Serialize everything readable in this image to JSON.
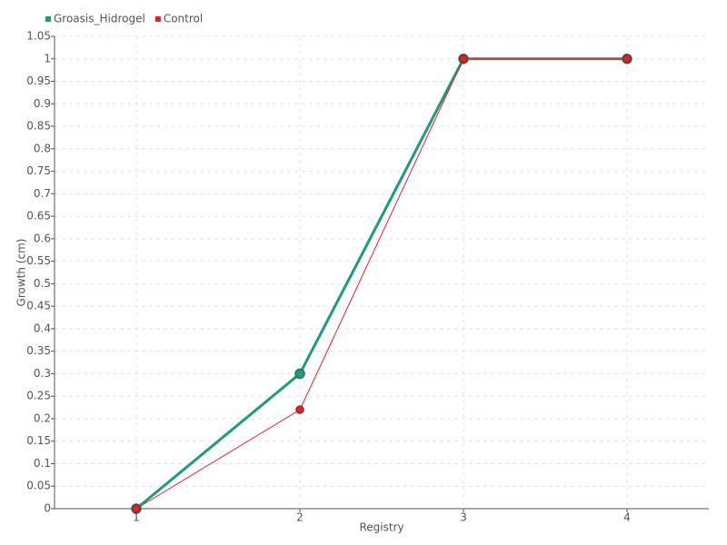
{
  "chart_data": {
    "type": "line",
    "x_label": "Registry",
    "y_label": "Growth (cm)",
    "categories": [
      "1",
      "2",
      "3",
      "4"
    ],
    "series": [
      {
        "name": "Groasis_Hidrogel",
        "color": "#1f9a7c",
        "values": [
          0,
          0.3,
          1,
          1
        ]
      },
      {
        "name": "Control",
        "color": "#e5222b",
        "values": [
          0,
          0.22,
          1,
          1
        ]
      }
    ],
    "ylim": [
      0,
      1.05
    ],
    "yticks": [
      0,
      0.05,
      0.1,
      0.15,
      0.2,
      0.25,
      0.3,
      0.35,
      0.4,
      0.45,
      0.5,
      0.55,
      0.6,
      0.65,
      0.7,
      0.75,
      0.8,
      0.85,
      0.9,
      0.95,
      1,
      1.05
    ],
    "grid": true,
    "legend": "top-left"
  }
}
